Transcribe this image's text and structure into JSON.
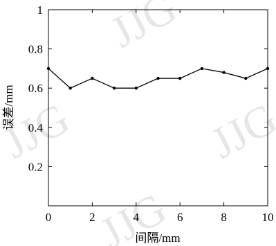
{
  "watermark": "JJG",
  "chart_data": {
    "type": "line",
    "xlabel": "间隔/mm",
    "ylabel": "误差/mm",
    "xlim": [
      0,
      10
    ],
    "ylim": [
      0,
      1
    ],
    "xticks": [
      0,
      2,
      4,
      6,
      8,
      10
    ],
    "yticks": [
      0.2,
      0.4,
      0.6,
      0.8,
      1
    ],
    "ytick_labels": [
      "0.2",
      "0.4",
      "0.6",
      "0.8",
      "1"
    ],
    "grid": false,
    "series": [
      {
        "x": [
          0,
          1,
          2,
          3,
          4,
          5,
          6,
          7,
          8,
          9,
          10
        ],
        "values": [
          0.7,
          0.6,
          0.65,
          0.6,
          0.6,
          0.65,
          0.65,
          0.7,
          0.68,
          0.65,
          0.7
        ],
        "color": "#000000",
        "marker": "dot"
      }
    ]
  }
}
